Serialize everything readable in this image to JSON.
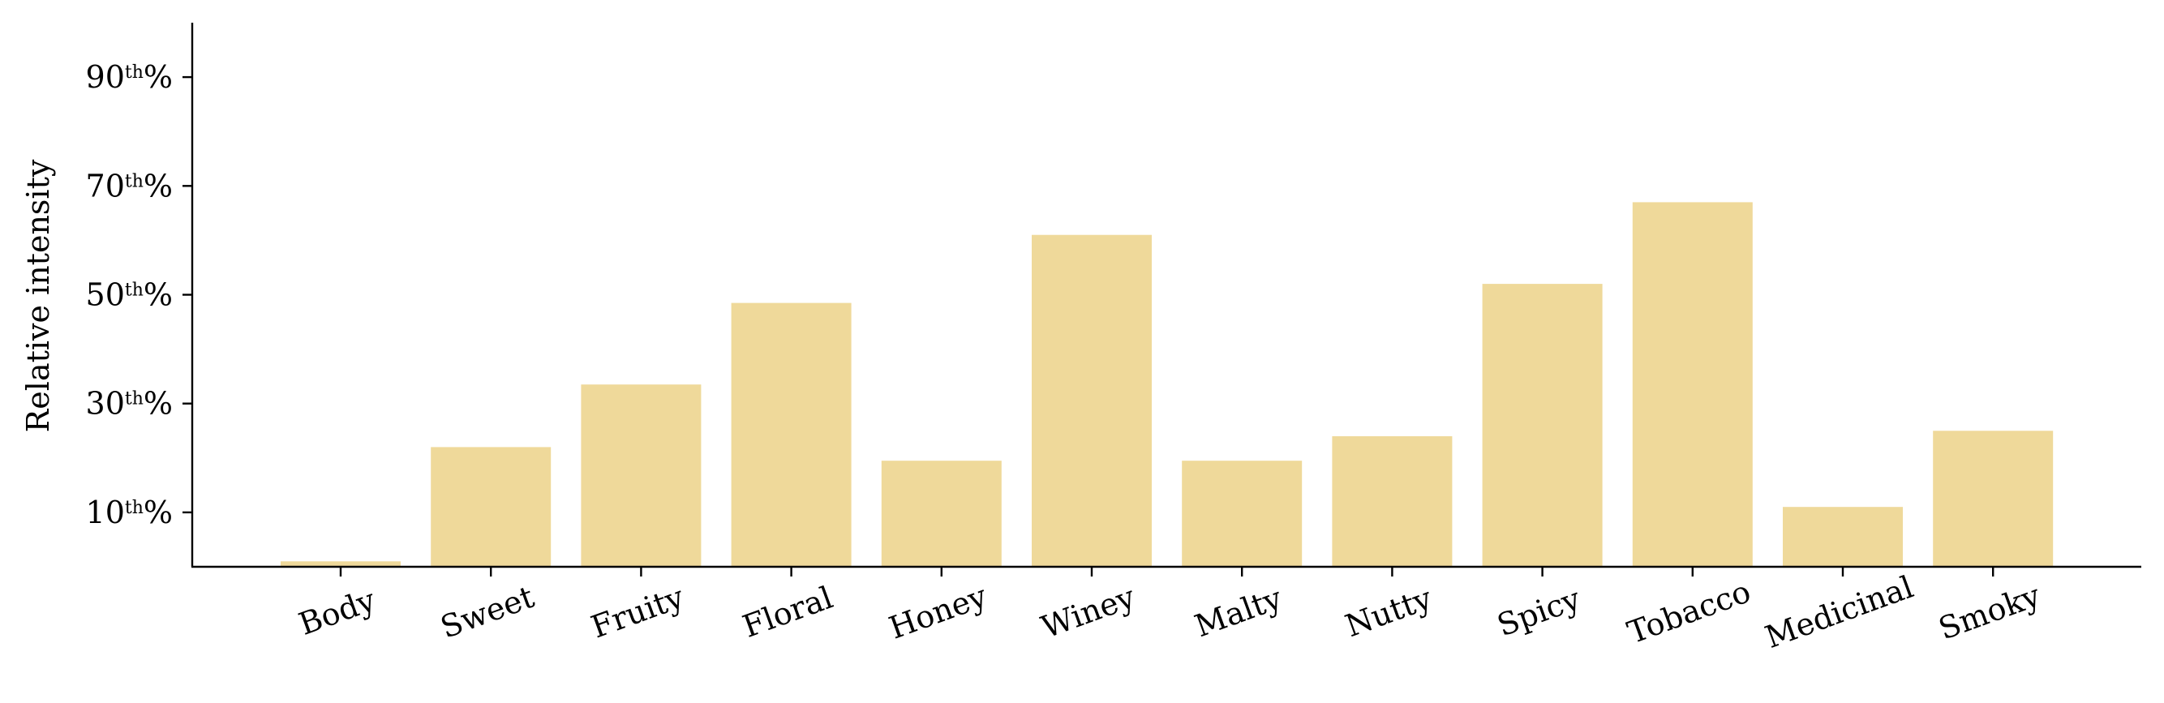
{
  "chart_data": {
    "type": "bar",
    "categories": [
      "Body",
      "Sweet",
      "Fruity",
      "Floral",
      "Honey",
      "Winey",
      "Malty",
      "Nutty",
      "Spicy",
      "Tobacco",
      "Medicinal",
      "Smoky"
    ],
    "values": [
      1,
      22,
      33.5,
      48.5,
      19.5,
      61,
      19.5,
      24,
      52,
      67,
      11,
      25
    ],
    "ylabel": "Relative intensity",
    "ylim": [
      0,
      100
    ],
    "yticks": [
      {
        "value": 10,
        "num": "10",
        "sup": "th",
        "pct": "%"
      },
      {
        "value": 30,
        "num": "30",
        "sup": "th",
        "pct": "%"
      },
      {
        "value": 50,
        "num": "50",
        "sup": "th",
        "pct": "%"
      },
      {
        "value": 70,
        "num": "70",
        "sup": "th",
        "pct": "%"
      },
      {
        "value": 90,
        "num": "90",
        "sup": "th",
        "pct": "%"
      }
    ],
    "bar_color": "#efd99a",
    "grid": false,
    "xtick_rotation": "rotated"
  }
}
